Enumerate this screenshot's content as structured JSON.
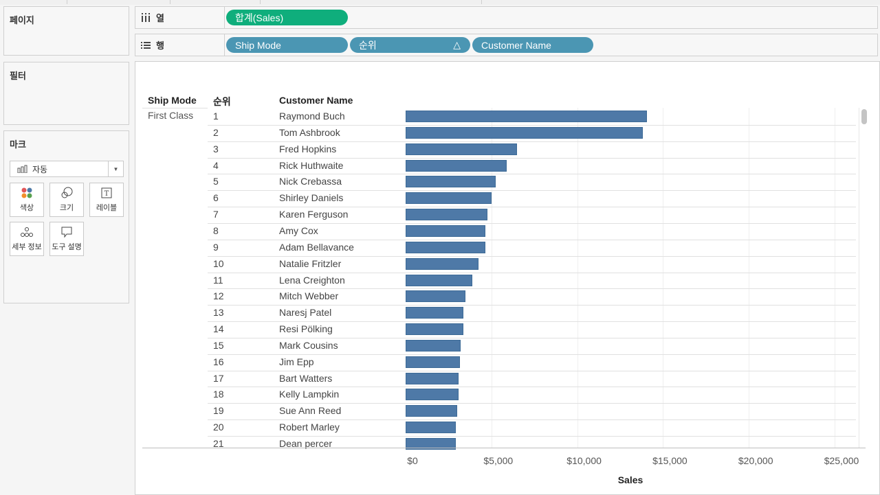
{
  "cards": {
    "pages_title": "페이지",
    "filters_title": "필터",
    "marks_title": "마크",
    "marks_type": "자동",
    "marks_buttons": [
      {
        "label": "색상",
        "icon": "color-icon"
      },
      {
        "label": "크기",
        "icon": "size-icon"
      },
      {
        "label": "레이블",
        "icon": "label-icon"
      },
      {
        "label": "세부 정보",
        "icon": "detail-icon"
      },
      {
        "label": "도구 설명",
        "icon": "tooltip-icon"
      }
    ]
  },
  "shelves": {
    "columns_label": "열",
    "rows_label": "행",
    "columns_pills": [
      "합계(Sales)"
    ],
    "rows_pills": [
      "Ship Mode",
      "순위",
      "Customer Name"
    ],
    "rank_pill_icon": "△"
  },
  "view": {
    "headers": {
      "ship_mode": "Ship Mode",
      "rank": "순위",
      "customer": "Customer Name"
    },
    "ship_mode_value": "First Class"
  },
  "chart_data": {
    "type": "bar",
    "orientation": "horizontal",
    "xlabel": "Sales",
    "xlim": [
      0,
      26000
    ],
    "x_ticks": [
      "$0",
      "$5,000",
      "$10,000",
      "$15,000",
      "$20,000",
      "$25,000"
    ],
    "x_tick_values": [
      0,
      5000,
      10000,
      15000,
      20000,
      25000
    ],
    "ranks": [
      "1",
      "2",
      "3",
      "4",
      "5",
      "6",
      "7",
      "8",
      "9",
      "10",
      "11",
      "12",
      "13",
      "14",
      "15",
      "16",
      "17",
      "18",
      "19",
      "20",
      "21"
    ],
    "categories": [
      "Raymond Buch",
      "Tom Ashbrook",
      "Fred Hopkins",
      "Rick Huthwaite",
      "Nick Crebassa",
      "Shirley Daniels",
      "Karen Ferguson",
      "Amy Cox",
      "Adam Bellavance",
      "Natalie Fritzler",
      "Lena Creighton",
      "Mitch Webber",
      "Naresj Patel",
      "Resi Pölking",
      "Mark Cousins",
      "Jim Epp",
      "Bart Watters",
      "Kelly Lampkin",
      "Sue Ann Reed",
      "Robert Marley",
      "Dean percer"
    ],
    "values": [
      14052,
      13820,
      6480,
      5890,
      5250,
      4990,
      4750,
      4650,
      4650,
      4230,
      3880,
      3500,
      3350,
      3350,
      3220,
      3180,
      3080,
      3080,
      3020,
      2930,
      2930
    ]
  }
}
